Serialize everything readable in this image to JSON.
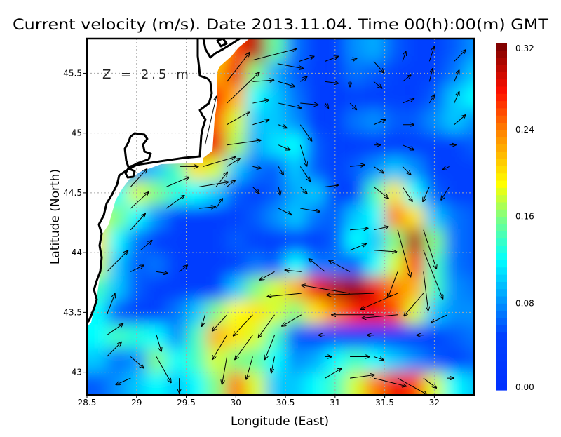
{
  "chart_data": {
    "type": "heatmap",
    "title": "Current velocity (m/s). Date 2013.11.04. Time 00(h):00(m) GMT",
    "xlabel": "Longitude (East)",
    "ylabel": "Latitude (North)",
    "annotation": "Z = 2.5 m",
    "xlim": [
      28.5,
      32.4
    ],
    "ylim": [
      42.81,
      45.79
    ],
    "xticks": [
      "28.5",
      "29",
      "29.5",
      "30",
      "30.5",
      "31",
      "31.5",
      "32"
    ],
    "xtick_values": [
      28.5,
      29,
      29.5,
      30,
      30.5,
      31,
      31.5,
      32
    ],
    "yticks": [
      "43",
      "43.5",
      "44",
      "44.5",
      "45",
      "45.5"
    ],
    "ytick_values": [
      43,
      43.5,
      44,
      44.5,
      45,
      45.5
    ],
    "grid": true,
    "colorbar": {
      "ticks": [
        "0.00",
        "0.08",
        "0.16",
        "0.24",
        "0.32"
      ],
      "tick_values": [
        0,
        0.08,
        0.16,
        0.24,
        0.32
      ],
      "clim": [
        0,
        0.32
      ],
      "colormap": [
        [
          0,
          "#0030ff"
        ],
        [
          0.05,
          "#0040ff"
        ],
        [
          0.08,
          "#0090ff"
        ],
        [
          0.12,
          "#00ffff"
        ],
        [
          0.16,
          "#80ff80"
        ],
        [
          0.19,
          "#ffff00"
        ],
        [
          0.24,
          "#ff8000"
        ],
        [
          0.275,
          "#ff1000"
        ],
        [
          0.32,
          "#780000"
        ]
      ]
    },
    "speed_units": "m/s",
    "grid_lon": [
      28.6,
      28.8,
      29.0,
      29.2,
      29.4,
      29.6,
      29.8,
      30.0,
      30.2,
      30.4,
      30.6,
      30.8,
      31.0,
      31.2,
      31.4,
      31.6,
      31.8,
      32.0,
      32.2,
      32.4
    ],
    "grid_lat": [
      45.7,
      45.5,
      45.3,
      45.1,
      44.9,
      44.7,
      44.5,
      44.3,
      44.1,
      43.9,
      43.7,
      43.5,
      43.3,
      43.1,
      42.9
    ],
    "speed": [
      [
        null,
        null,
        null,
        null,
        null,
        null,
        0.2,
        0.26,
        0.3,
        0.15,
        0.07,
        0.05,
        0.05,
        0.08,
        0.09,
        0.06,
        0.05,
        0.05,
        0.06,
        0.08
      ],
      [
        null,
        null,
        null,
        null,
        null,
        null,
        0.22,
        0.28,
        0.16,
        0.09,
        0.06,
        0.05,
        0.04,
        0.07,
        0.06,
        0.05,
        0.05,
        0.05,
        0.07,
        0.1
      ],
      [
        null,
        null,
        null,
        null,
        null,
        null,
        0.27,
        0.22,
        0.12,
        0.1,
        0.07,
        0.04,
        0.04,
        0.05,
        0.04,
        0.05,
        0.04,
        0.06,
        0.1,
        0.12
      ],
      [
        null,
        null,
        null,
        null,
        null,
        null,
        0.25,
        0.18,
        0.1,
        0.1,
        0.08,
        0.04,
        0.05,
        0.07,
        0.08,
        0.06,
        0.06,
        0.08,
        0.1,
        0.08
      ],
      [
        null,
        null,
        null,
        null,
        null,
        null,
        0.28,
        0.17,
        0.09,
        0.11,
        0.12,
        0.06,
        0.05,
        0.04,
        0.04,
        0.04,
        0.05,
        0.05,
        0.05,
        0.06
      ],
      [
        null,
        null,
        0.08,
        0.1,
        0.14,
        0.2,
        0.18,
        0.1,
        0.07,
        0.06,
        0.1,
        0.06,
        0.05,
        0.06,
        0.08,
        0.1,
        0.08,
        0.05,
        0.05,
        0.05
      ],
      [
        null,
        0.12,
        0.18,
        0.16,
        0.13,
        0.12,
        0.1,
        0.06,
        0.05,
        0.06,
        0.09,
        0.1,
        0.05,
        0.05,
        0.14,
        0.2,
        0.12,
        0.06,
        0.05,
        0.05
      ],
      [
        0.18,
        0.16,
        0.12,
        0.08,
        0.05,
        0.04,
        0.04,
        0.05,
        0.06,
        0.08,
        0.1,
        0.07,
        0.06,
        0.1,
        0.12,
        0.24,
        0.2,
        0.1,
        0.07,
        0.06
      ],
      [
        0.2,
        0.12,
        0.07,
        0.04,
        0.04,
        0.04,
        0.04,
        0.06,
        0.05,
        0.04,
        0.05,
        0.04,
        0.06,
        0.12,
        0.1,
        0.16,
        0.3,
        0.16,
        0.07,
        0.06
      ],
      [
        0.18,
        0.1,
        0.06,
        0.07,
        0.05,
        0.04,
        0.04,
        0.05,
        0.07,
        0.06,
        0.12,
        0.07,
        0.07,
        0.06,
        0.12,
        0.18,
        0.26,
        0.14,
        0.07,
        0.06
      ],
      [
        0.14,
        0.1,
        0.06,
        0.04,
        0.04,
        0.04,
        0.05,
        0.1,
        0.16,
        0.18,
        0.22,
        0.28,
        0.3,
        0.31,
        0.28,
        0.24,
        0.22,
        0.14,
        0.08,
        0.07
      ],
      [
        0.12,
        0.06,
        0.05,
        0.05,
        0.07,
        0.1,
        0.16,
        0.19,
        0.2,
        0.18,
        0.16,
        0.2,
        0.24,
        0.27,
        0.28,
        0.26,
        0.18,
        0.1,
        0.08,
        0.08
      ],
      [
        0.12,
        0.14,
        0.13,
        0.12,
        0.08,
        0.14,
        0.22,
        0.2,
        0.18,
        0.14,
        0.06,
        0.04,
        0.04,
        0.04,
        0.04,
        0.04,
        0.05,
        0.05,
        0.06,
        0.07
      ],
      [
        0.1,
        0.07,
        0.08,
        0.16,
        0.12,
        0.14,
        0.18,
        0.16,
        0.15,
        0.12,
        0.08,
        0.09,
        0.12,
        0.14,
        0.12,
        0.1,
        0.08,
        0.06,
        0.05,
        0.06
      ],
      [
        0.06,
        0.08,
        0.1,
        0.12,
        0.1,
        0.12,
        0.16,
        0.24,
        0.18,
        0.1,
        0.1,
        0.12,
        0.14,
        0.18,
        0.24,
        0.28,
        0.26,
        0.18,
        0.12,
        0.1
      ]
    ],
    "vectors_columns": [
      "lon",
      "lat",
      "u",
      "v"
    ],
    "vectors": [
      [
        30.17,
        45.61,
        0.27,
        0.07
      ],
      [
        29.91,
        45.43,
        0.14,
        0.18
      ],
      [
        29.91,
        45.25,
        0.2,
        0.19
      ],
      [
        29.69,
        44.9,
        0.07,
        0.3
      ],
      [
        29.67,
        44.72,
        0.2,
        0.06
      ],
      [
        30.42,
        45.58,
        0.16,
        -0.03
      ],
      [
        30.64,
        45.6,
        0.09,
        0.03
      ],
      [
        30.9,
        45.6,
        0.08,
        0.03
      ],
      [
        31.15,
        45.61,
        0.04,
        0.01
      ],
      [
        31.39,
        45.6,
        0.06,
        -0.07
      ],
      [
        31.68,
        45.6,
        0.02,
        0.06
      ],
      [
        31.95,
        45.6,
        0.03,
        0.09
      ],
      [
        32.2,
        45.6,
        0.07,
        0.07
      ],
      [
        30.17,
        45.43,
        0.13,
        0.01
      ],
      [
        30.43,
        45.43,
        0.1,
        -0.03
      ],
      [
        30.65,
        45.43,
        0.04,
        0.03
      ],
      [
        30.9,
        45.43,
        0.08,
        -0.01
      ],
      [
        31.15,
        45.43,
        0.0,
        -0.03
      ],
      [
        31.39,
        45.43,
        0.05,
        -0.04
      ],
      [
        31.68,
        45.43,
        0.05,
        0.04
      ],
      [
        31.95,
        45.43,
        0.02,
        0.08
      ],
      [
        32.2,
        45.43,
        0.03,
        0.07
      ],
      [
        30.17,
        45.25,
        0.1,
        0.02
      ],
      [
        30.43,
        45.25,
        0.14,
        -0.03
      ],
      [
        30.65,
        45.25,
        0.11,
        -0.01
      ],
      [
        30.9,
        45.25,
        0.02,
        -0.03
      ],
      [
        31.15,
        45.25,
        0.04,
        -0.04
      ],
      [
        31.68,
        45.25,
        0.07,
        0.03
      ],
      [
        31.95,
        45.25,
        0.03,
        0.05
      ],
      [
        32.2,
        45.25,
        0.03,
        0.07
      ],
      [
        29.91,
        45.07,
        0.14,
        0.08
      ],
      [
        30.17,
        45.07,
        0.1,
        0.03
      ],
      [
        30.43,
        45.07,
        0.05,
        -0.02
      ],
      [
        30.65,
        45.07,
        0.07,
        -0.1
      ],
      [
        31.39,
        45.07,
        0.07,
        0.03
      ],
      [
        31.68,
        45.07,
        0.07,
        0.0
      ],
      [
        32.2,
        45.07,
        0.07,
        0.06
      ],
      [
        29.91,
        44.9,
        0.21,
        0.03
      ],
      [
        30.43,
        44.9,
        0.07,
        -0.03
      ],
      [
        30.65,
        44.9,
        0.04,
        -0.13
      ],
      [
        31.39,
        44.9,
        0.04,
        0.0
      ],
      [
        31.68,
        44.9,
        0.07,
        -0.03
      ],
      [
        32.15,
        44.9,
        0.04,
        0.0
      ],
      [
        29.44,
        44.72,
        0.11,
        0.0
      ],
      [
        29.91,
        44.72,
        0.08,
        0.05
      ],
      [
        30.17,
        44.72,
        0.05,
        -0.01
      ],
      [
        30.43,
        44.72,
        0.03,
        -0.05
      ],
      [
        30.65,
        44.72,
        0.06,
        -0.09
      ],
      [
        31.15,
        44.72,
        0.09,
        0.01
      ],
      [
        31.39,
        44.72,
        0.06,
        -0.04
      ],
      [
        31.68,
        44.72,
        0.05,
        -0.05
      ],
      [
        32.15,
        44.72,
        -0.04,
        -0.02
      ],
      [
        28.94,
        44.55,
        0.1,
        0.11
      ],
      [
        29.3,
        44.55,
        0.14,
        0.06
      ],
      [
        29.63,
        44.55,
        0.18,
        0.03
      ],
      [
        29.8,
        44.55,
        0.07,
        0.09
      ],
      [
        29.91,
        44.55,
        0.05,
        0.04
      ],
      [
        30.17,
        44.55,
        0.04,
        -0.04
      ],
      [
        30.43,
        44.55,
        0.01,
        -0.05
      ],
      [
        30.65,
        44.55,
        0.04,
        -0.04
      ],
      [
        30.9,
        44.55,
        0.08,
        0.01
      ],
      [
        31.39,
        44.55,
        0.09,
        -0.07
      ],
      [
        31.68,
        44.55,
        0.06,
        -0.09
      ],
      [
        31.95,
        44.55,
        -0.04,
        -0.09
      ],
      [
        32.15,
        44.55,
        -0.05,
        -0.08
      ],
      [
        28.94,
        44.37,
        0.11,
        0.1
      ],
      [
        29.3,
        44.37,
        0.11,
        0.08
      ],
      [
        29.63,
        44.37,
        0.1,
        0.01
      ],
      [
        29.8,
        44.37,
        0.04,
        0.06
      ],
      [
        30.43,
        44.37,
        0.08,
        -0.04
      ],
      [
        30.65,
        44.37,
        0.12,
        -0.02
      ],
      [
        28.94,
        44.19,
        0.09,
        0.1
      ],
      [
        31.15,
        44.19,
        0.11,
        0.01
      ],
      [
        31.39,
        44.19,
        0.09,
        0.02
      ],
      [
        31.63,
        44.19,
        0.08,
        -0.29
      ],
      [
        31.89,
        44.19,
        0.08,
        -0.24
      ],
      [
        29.04,
        44.02,
        0.07,
        0.06
      ],
      [
        31.15,
        44.02,
        0.1,
        0.04
      ],
      [
        31.39,
        44.02,
        0.14,
        -0.01
      ],
      [
        31.89,
        44.02,
        0.12,
        -0.3
      ],
      [
        28.7,
        43.84,
        0.13,
        0.13
      ],
      [
        28.94,
        43.84,
        0.08,
        0.04
      ],
      [
        29.2,
        43.84,
        0.07,
        -0.01
      ],
      [
        29.43,
        43.84,
        0.05,
        0.04
      ],
      [
        30.39,
        43.84,
        -0.09,
        -0.05
      ],
      [
        30.66,
        43.84,
        -0.1,
        0.01
      ],
      [
        30.9,
        43.84,
        -0.1,
        0.08
      ],
      [
        31.15,
        43.84,
        -0.13,
        0.07
      ],
      [
        31.63,
        43.84,
        -0.06,
        -0.16
      ],
      [
        31.89,
        43.84,
        0.03,
        -0.24
      ],
      [
        30.66,
        43.66,
        -0.21,
        -0.02
      ],
      [
        31.15,
        43.66,
        -0.3,
        0.05
      ],
      [
        31.39,
        43.66,
        -0.29,
        -0.01
      ],
      [
        31.63,
        43.66,
        -0.23,
        -0.1
      ],
      [
        31.89,
        43.66,
        -0.12,
        -0.14
      ],
      [
        28.7,
        43.48,
        0.05,
        0.13
      ],
      [
        29.69,
        43.48,
        -0.02,
        -0.07
      ],
      [
        29.91,
        43.48,
        -0.09,
        -0.1
      ],
      [
        30.17,
        43.48,
        -0.12,
        -0.13
      ],
      [
        30.39,
        43.48,
        -0.1,
        -0.14
      ],
      [
        30.66,
        43.48,
        -0.12,
        -0.07
      ],
      [
        31.39,
        43.48,
        -0.26,
        0.0
      ],
      [
        31.63,
        43.48,
        -0.22,
        -0.02
      ],
      [
        32.13,
        43.48,
        -0.1,
        -0.05
      ],
      [
        28.7,
        43.31,
        0.1,
        0.07
      ],
      [
        29.2,
        43.31,
        0.03,
        -0.1
      ],
      [
        29.91,
        43.31,
        -0.09,
        -0.15
      ],
      [
        30.17,
        43.31,
        -0.11,
        -0.15
      ],
      [
        30.39,
        43.31,
        -0.06,
        -0.15
      ],
      [
        30.9,
        43.31,
        -0.04,
        0.0
      ],
      [
        31.39,
        43.31,
        -0.04,
        0.0
      ],
      [
        31.89,
        43.31,
        -0.04,
        0.0
      ],
      [
        28.7,
        43.13,
        0.09,
        0.09
      ],
      [
        28.94,
        43.13,
        0.08,
        -0.07
      ],
      [
        29.2,
        43.13,
        0.09,
        -0.16
      ],
      [
        29.91,
        43.13,
        -0.03,
        -0.17
      ],
      [
        30.17,
        43.13,
        -0.04,
        -0.14
      ],
      [
        30.39,
        43.13,
        -0.02,
        -0.1
      ],
      [
        30.9,
        43.13,
        0.04,
        0.0
      ],
      [
        31.15,
        43.13,
        0.12,
        0.0
      ],
      [
        31.39,
        43.13,
        0.06,
        -0.02
      ],
      [
        28.94,
        42.95,
        -0.09,
        -0.04
      ],
      [
        29.43,
        42.95,
        0.0,
        -0.09
      ],
      [
        30.9,
        42.95,
        0.1,
        0.06
      ],
      [
        31.15,
        42.95,
        0.15,
        0.02
      ],
      [
        31.39,
        42.95,
        0.2,
        -0.05
      ],
      [
        31.63,
        42.95,
        0.18,
        -0.1
      ],
      [
        31.89,
        42.95,
        0.08,
        -0.06
      ],
      [
        32.13,
        42.95,
        0.04,
        0.0
      ]
    ]
  }
}
